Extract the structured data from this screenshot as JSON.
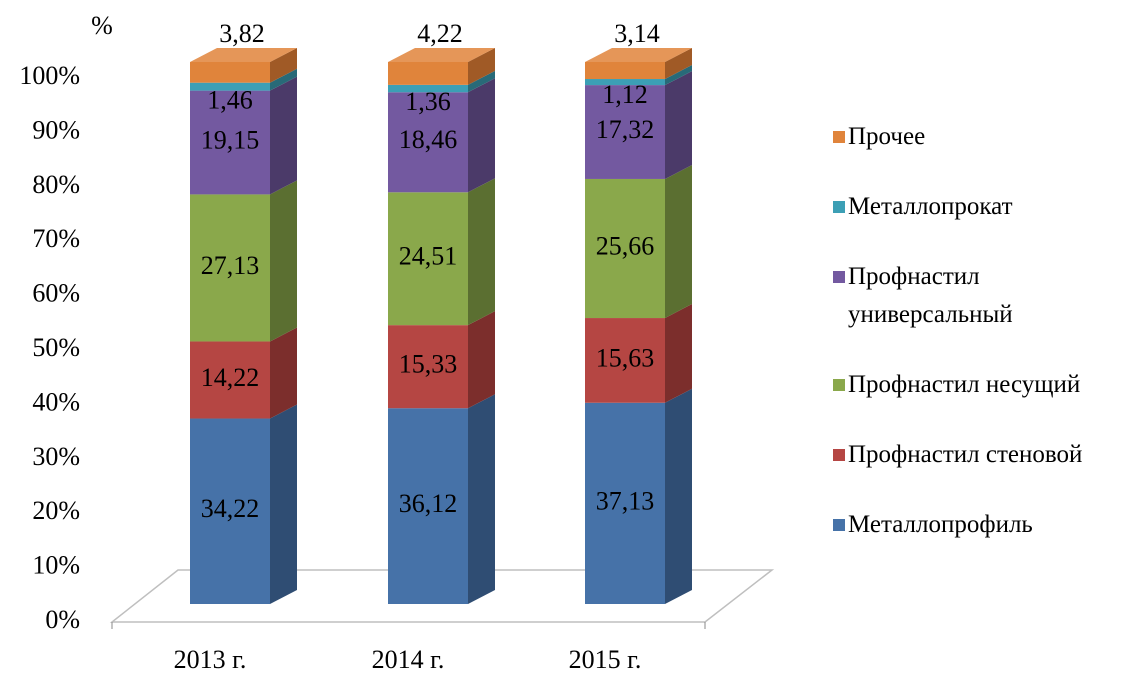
{
  "chart_data": {
    "type": "bar",
    "stacked": true,
    "three_d": true,
    "y_axis_label": "%",
    "categories": [
      "2013 г.",
      "2014 г.",
      "2015 г."
    ],
    "series": [
      {
        "name": "Металлопрофиль",
        "color": "#4672a8",
        "side_color": "#2f4d73",
        "values": [
          34.22,
          36.12,
          37.13
        ],
        "value_labels": [
          "34,22",
          "36,12",
          "37,13"
        ]
      },
      {
        "name": "Профнастил стеновой",
        "color": "#b54643",
        "side_color": "#7c2e2c",
        "values": [
          14.22,
          15.33,
          15.63
        ],
        "value_labels": [
          "14,22",
          "15,33",
          "15,63"
        ]
      },
      {
        "name": "Профнастил несущий",
        "color": "#8aa84b",
        "side_color": "#5b6f31",
        "values": [
          27.13,
          24.51,
          25.66
        ],
        "value_labels": [
          "27,13",
          "24,51",
          "25,66"
        ]
      },
      {
        "name": "Профнастил универсальный",
        "color": "#7359a0",
        "side_color": "#4b3a69",
        "values": [
          19.15,
          18.46,
          17.32
        ],
        "value_labels": [
          "19,15",
          "18,46",
          "17,32"
        ]
      },
      {
        "name": "Металлопрокат",
        "color": "#3c9fb5",
        "side_color": "#286a78",
        "values": [
          1.46,
          1.36,
          1.12
        ],
        "value_labels": [
          "1,46",
          "1,36",
          "1,12"
        ]
      },
      {
        "name": "Прочее",
        "color": "#e0843b",
        "side_color": "#a05a26",
        "values": [
          3.82,
          4.22,
          3.14
        ],
        "value_labels": [
          "3,82",
          "4,22",
          "3,14"
        ]
      }
    ],
    "ylim": [
      0,
      100
    ],
    "yticks": [
      {
        "value": 0,
        "label": "0%"
      },
      {
        "value": 10,
        "label": "10%"
      },
      {
        "value": 20,
        "label": "20%"
      },
      {
        "value": 30,
        "label": "30%"
      },
      {
        "value": 40,
        "label": "40%"
      },
      {
        "value": 50,
        "label": "50%"
      },
      {
        "value": 60,
        "label": "60%"
      },
      {
        "value": 70,
        "label": "70%"
      },
      {
        "value": 80,
        "label": "80%"
      },
      {
        "value": 90,
        "label": "90%"
      },
      {
        "value": 100,
        "label": "100%"
      }
    ],
    "legend": "right"
  }
}
